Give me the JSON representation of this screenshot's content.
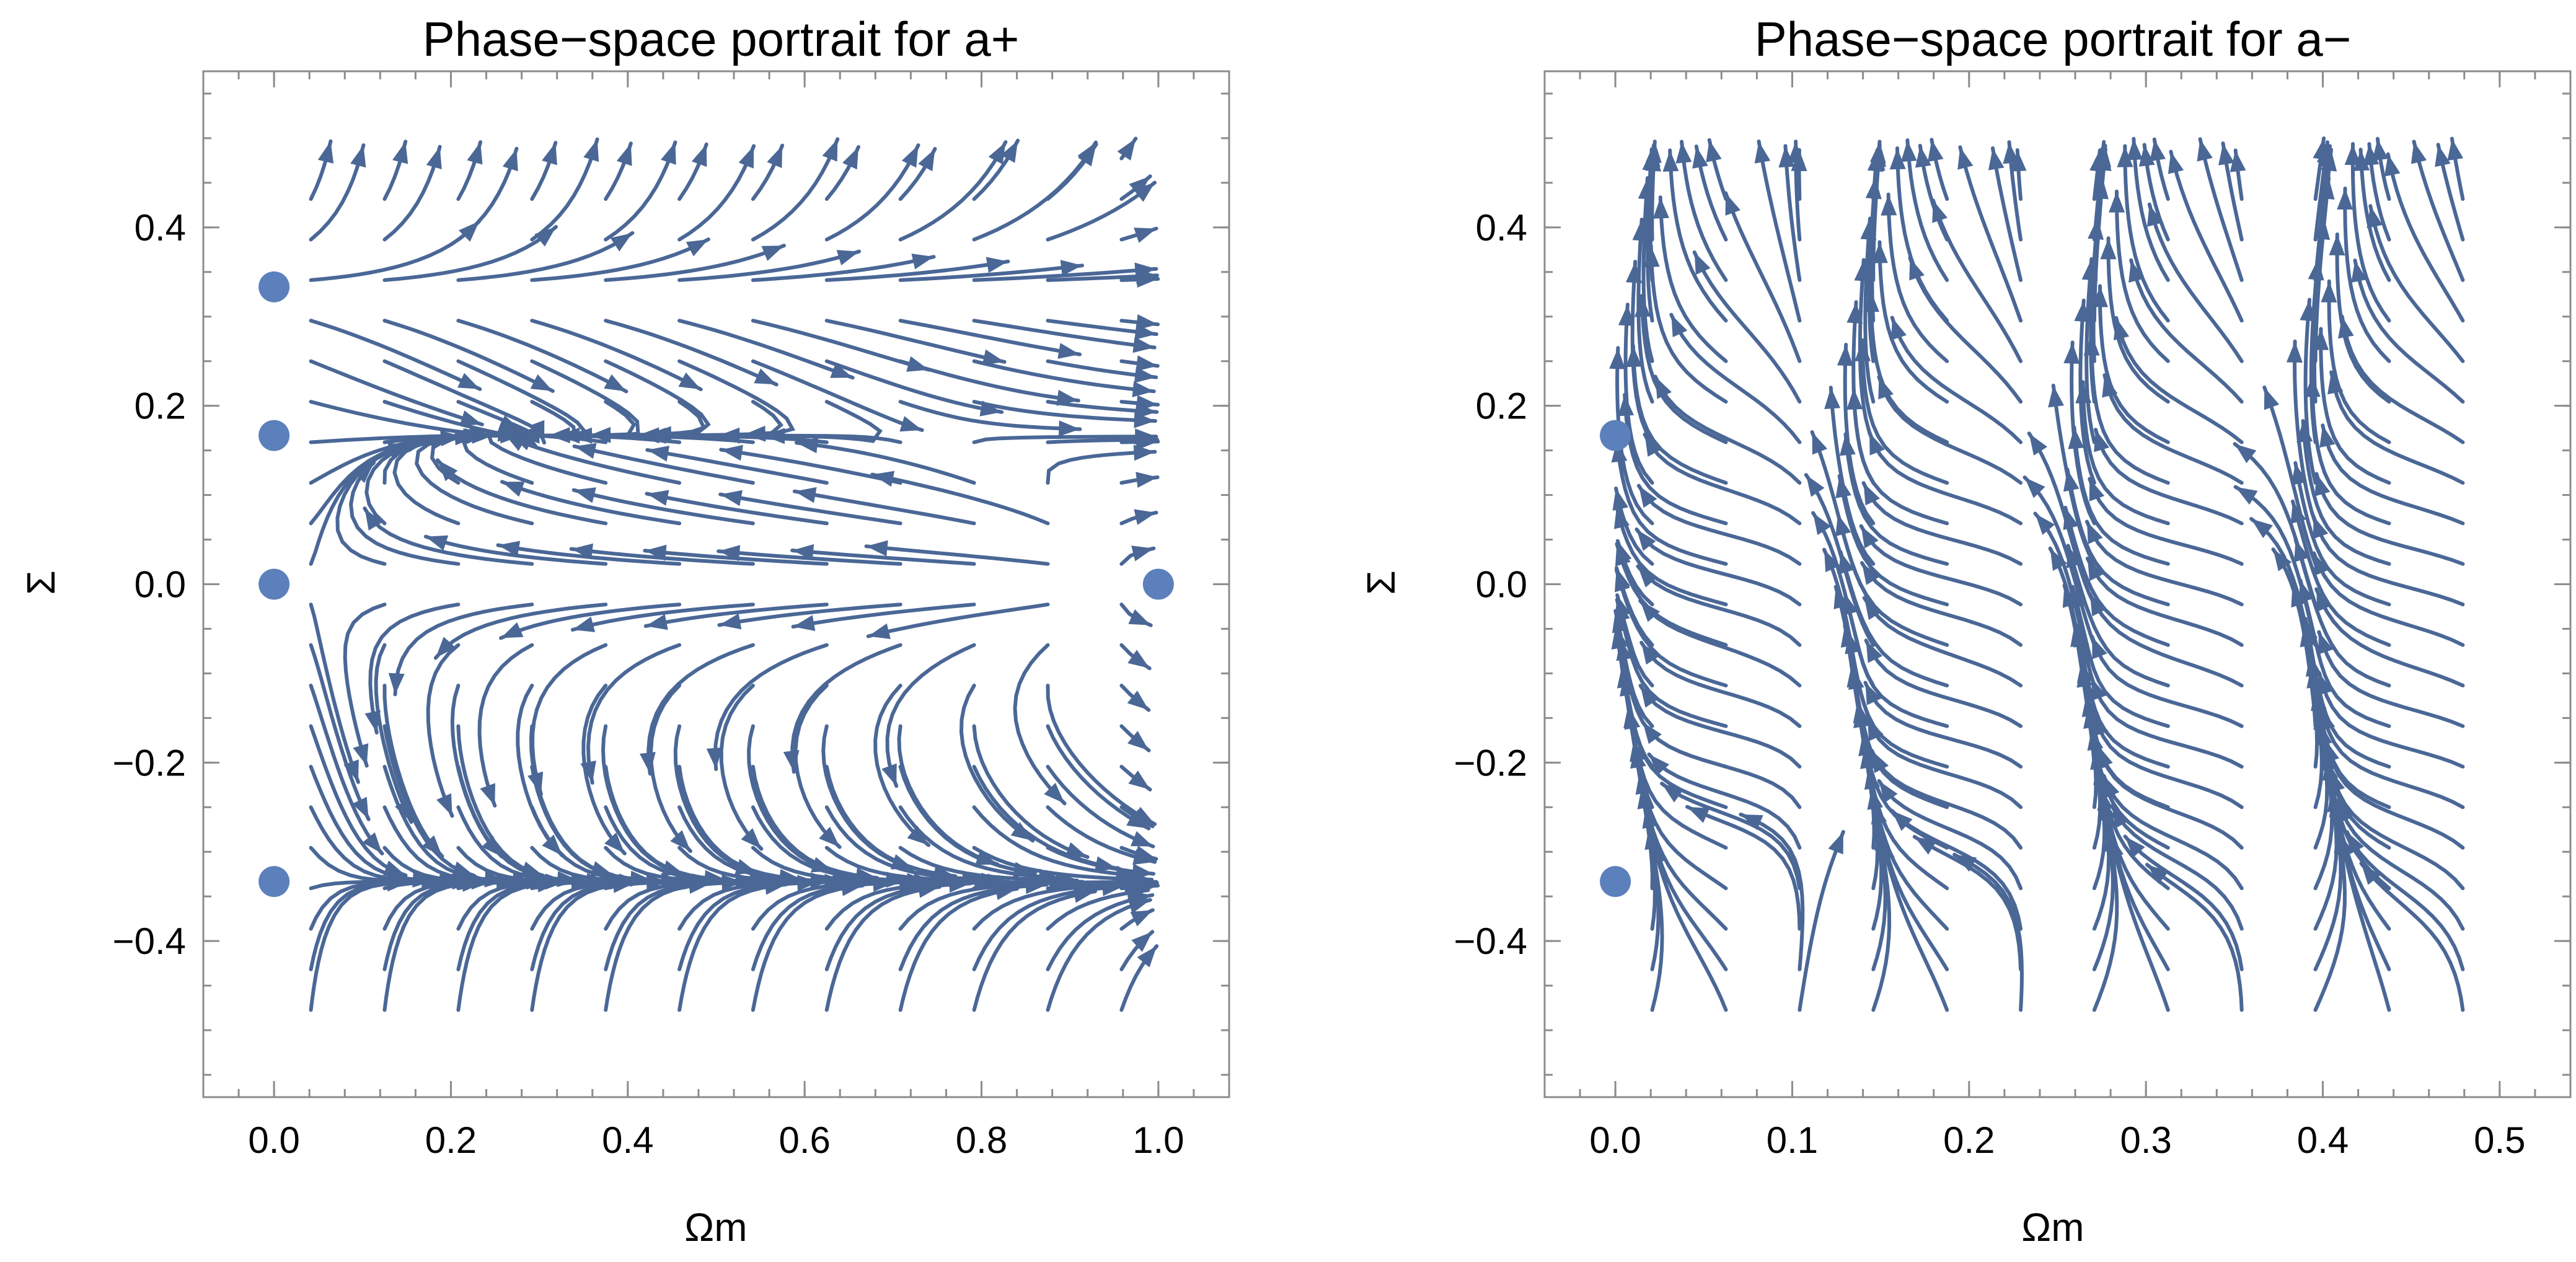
{
  "chart_data": [
    {
      "type": "streamplot",
      "title": "Phase−space portrait for a+",
      "xlabel": "Ωm",
      "ylabel": "Σ",
      "xlim": [
        -0.08,
        1.08
      ],
      "ylim": [
        -0.575,
        0.575
      ],
      "xticks": [
        0.0,
        0.2,
        0.4,
        0.6,
        0.8,
        1.0
      ],
      "xtick_labels": [
        "0.0",
        "0.2",
        "0.4",
        "0.6",
        "0.8",
        "1.0"
      ],
      "yticks": [
        0.4,
        0.2,
        0.0,
        -0.2,
        -0.4
      ],
      "ytick_labels": [
        "0.4",
        "0.2",
        "0.0",
        "−0.2",
        "−0.4"
      ],
      "plot_domain": {
        "x": [
          0.0,
          1.0
        ],
        "y": [
          -0.5,
          0.5
        ]
      },
      "vector_field": "a_plus",
      "fixed_points": [
        {
          "x": 0.0,
          "y": 0.3333
        },
        {
          "x": 0.0,
          "y": 0.1667
        },
        {
          "x": 0.0,
          "y": 0.0
        },
        {
          "x": 1.0,
          "y": 0.0
        },
        {
          "x": 0.0,
          "y": -0.3333
        }
      ],
      "stream_color": "#4a6796",
      "point_color": "#5b80bb",
      "grid": false,
      "frame": true
    },
    {
      "type": "streamplot",
      "title": "Phase−space portrait for a−",
      "xlabel": "Ωm",
      "ylabel": "Σ",
      "xlim": [
        -0.04,
        0.54
      ],
      "ylim": [
        -0.575,
        0.575
      ],
      "xticks": [
        0.0,
        0.1,
        0.2,
        0.3,
        0.4,
        0.5
      ],
      "xtick_labels": [
        "0.0",
        "0.1",
        "0.2",
        "0.3",
        "0.4",
        "0.5"
      ],
      "yticks": [
        0.4,
        0.2,
        0.0,
        -0.2,
        -0.4
      ],
      "ytick_labels": [
        "0.4",
        "0.2",
        "0.0",
        "−0.2",
        "−0.4"
      ],
      "plot_domain": {
        "x": [
          0.0,
          0.5
        ],
        "y": [
          -0.5,
          0.5
        ]
      },
      "vector_field": "a_minus",
      "fixed_points": [
        {
          "x": 0.0,
          "y": 0.1667
        },
        {
          "x": 0.0,
          "y": -0.3333
        }
      ],
      "stream_color": "#4a6796",
      "point_color": "#5b80bb",
      "grid": false,
      "frame": true
    }
  ]
}
